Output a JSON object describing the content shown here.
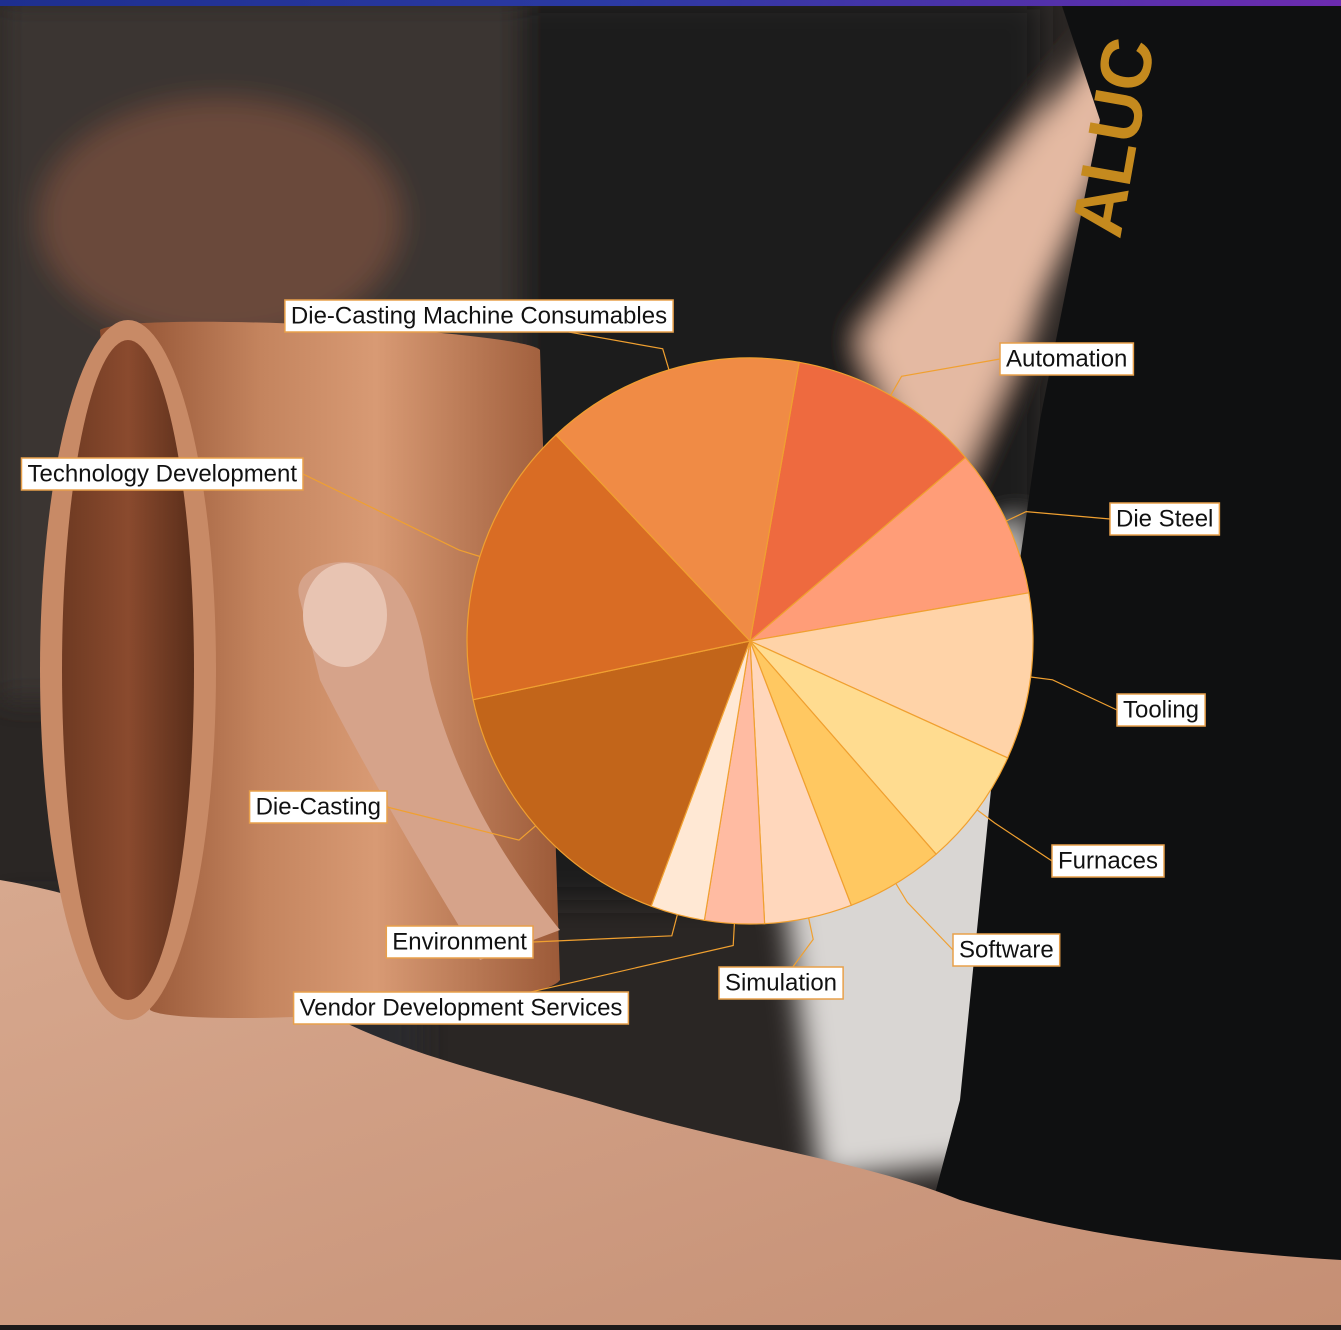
{
  "colors": {
    "accent_bar_start": "#1e2f8f",
    "accent_bar_end": "#6d2bb0",
    "slice_border": "#f0a030",
    "label_border": "#e8a04a"
  },
  "photo": {
    "subject": "hand holding a copper cylindrical bushing",
    "sleeve_text": "ALUC"
  },
  "chart_data": {
    "type": "pie",
    "start_angle_deg": 80,
    "direction": "clockwise",
    "slices": [
      {
        "label": "Automation",
        "value": 11.0,
        "color": "#ee6a3f"
      },
      {
        "label": "Die Steel",
        "value": 8.5,
        "color": "#ff9d78"
      },
      {
        "label": "Tooling",
        "value": 9.5,
        "color": "#ffd3a8"
      },
      {
        "label": "Furnaces",
        "value": 6.8,
        "color": "#ffdc90"
      },
      {
        "label": "Software",
        "value": 5.6,
        "color": "#ffc861"
      },
      {
        "label": "Simulation",
        "value": 5.0,
        "color": "#ffd7bc"
      },
      {
        "label": "Vendor Development Services",
        "value": 3.4,
        "color": "#ffbba2"
      },
      {
        "label": "Environment",
        "value": 3.1,
        "color": "#ffe8d4"
      },
      {
        "label": "Die-Casting",
        "value": 16.0,
        "color": "#c2651a"
      },
      {
        "label": "Technology Development",
        "value": 16.3,
        "color": "#d96c24"
      },
      {
        "label": "Die-Casting Machine Consumables",
        "value": 14.8,
        "color": "#f08b45"
      }
    ]
  }
}
